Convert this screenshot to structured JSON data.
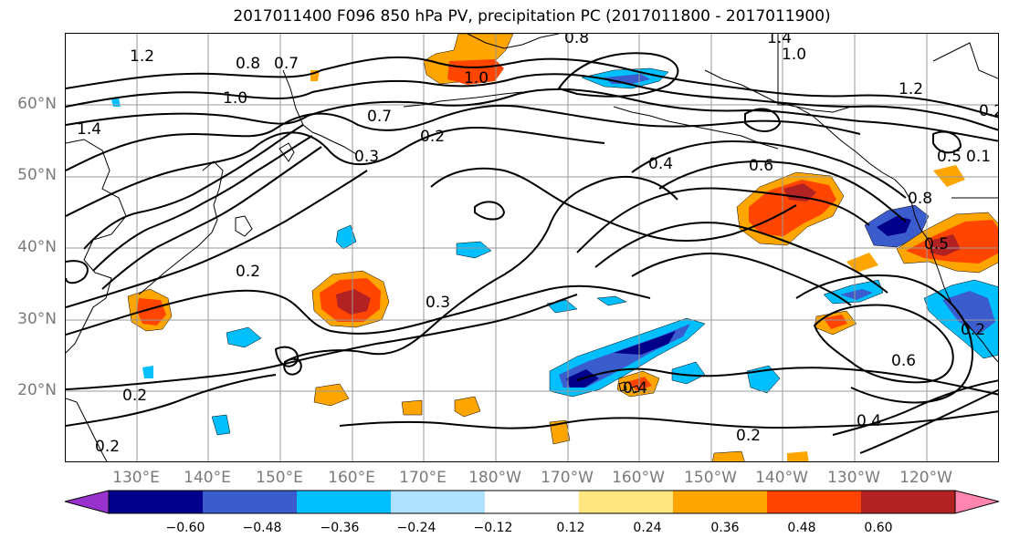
{
  "title": "2017011400 F096 850 hPa PV, precipitation PC (2017011800 - 2017011900)",
  "lat_labels": [
    "60°N",
    "50°N",
    "40°N",
    "30°N",
    "20°N"
  ],
  "lon_labels": [
    "130°E",
    "140°E",
    "150°E",
    "160°E",
    "170°E",
    "180°W",
    "170°W",
    "160°W",
    "150°W",
    "140°W",
    "130°W",
    "120°W"
  ],
  "contour_labels": [
    "1.2",
    "0.8",
    "0.7",
    "1.0",
    "1.4",
    "0.7",
    "0.3",
    "0.2",
    "1.0",
    "0.8",
    "1.4",
    "1.0",
    "1.2",
    "0.4",
    "0.6",
    "0.2",
    "0.3",
    "0.2",
    "0.2",
    "0.4",
    "0.2",
    "0.6",
    "0.4",
    "0.5",
    "0.8",
    "0.2",
    "0.5",
    "0.1",
    "0.2"
  ],
  "colorbar": {
    "colors": [
      "#9932cc",
      "#00008b",
      "#3a5ccc",
      "#00bfff",
      "#b0e2ff",
      "#ffffff",
      "#ffe680",
      "#ffa500",
      "#ff4500",
      "#b22222",
      "#ff85b0"
    ],
    "ticks": [
      "−0.60",
      "−0.48",
      "−0.36",
      "−0.24",
      "−0.12",
      "0.12",
      "0.24",
      "0.36",
      "0.48",
      "0.60"
    ]
  }
}
